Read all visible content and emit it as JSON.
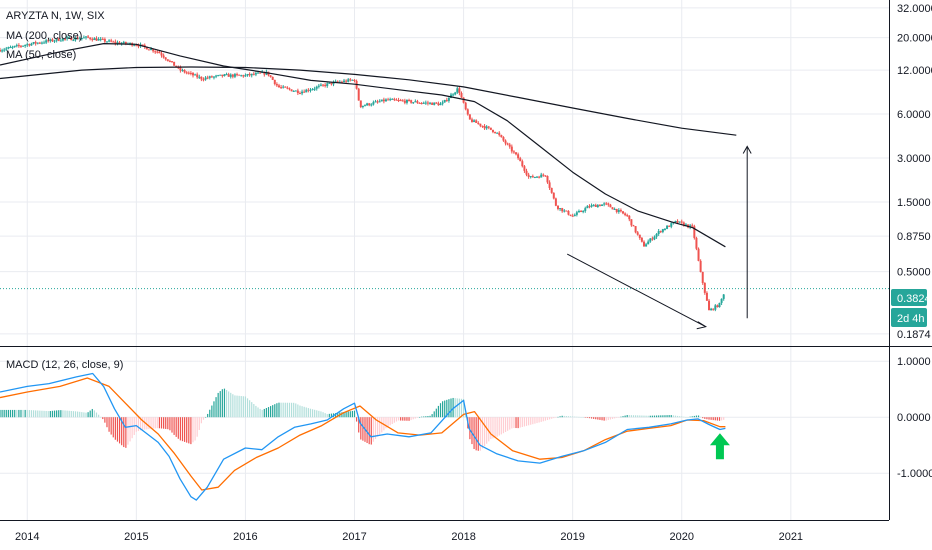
{
  "header": {
    "symbol": "ARYZTA N, 1W, SIX",
    "ma200_label": "MA (200, close)",
    "ma50_label": "MA (50, close)",
    "macd_label": "MACD (12, 26, close, 9)"
  },
  "price_badge": {
    "value": "0.3824",
    "countdown": "2d 4h"
  },
  "colors": {
    "up": "#26a69a",
    "down": "#ef5350",
    "ma": "#131722",
    "macd": "#2196f3",
    "signal": "#ff6d00",
    "arrow": "#00c853",
    "grid": "#e9ebf0",
    "dotted": "#26a69a"
  },
  "chart_data": [
    {
      "type": "line",
      "subtype": "candlestick",
      "title": "ARYZTA N, 1W, SIX",
      "y_scale": "log",
      "y_ticks": [
        "32.0000",
        "20.0000",
        "12.0000",
        "6.0000",
        "3.0000",
        "1.5000",
        "0.8750",
        "0.5000",
        "0.1874"
      ],
      "x_ticks": [
        "2014",
        "2015",
        "2016",
        "2017",
        "2018",
        "2019",
        "2020",
        "2021"
      ],
      "x_unit": "year",
      "ylim": [
        0.165,
        34
      ],
      "xlim": [
        2013.75,
        2021.9
      ],
      "last_price": 0.3824,
      "price_key_points": [
        [
          2013.75,
          16.5
        ],
        [
          2014.0,
          18.0
        ],
        [
          2014.3,
          19.5
        ],
        [
          2014.55,
          20.0
        ],
        [
          2014.8,
          18.5
        ],
        [
          2015.0,
          18.0
        ],
        [
          2015.2,
          16.0
        ],
        [
          2015.4,
          12.0
        ],
        [
          2015.6,
          10.5
        ],
        [
          2015.8,
          11.0
        ],
        [
          2016.0,
          11.0
        ],
        [
          2016.2,
          11.5
        ],
        [
          2016.3,
          9.2
        ],
        [
          2016.5,
          8.5
        ],
        [
          2016.8,
          9.8
        ],
        [
          2017.0,
          10.3
        ],
        [
          2017.05,
          6.8
        ],
        [
          2017.3,
          7.5
        ],
        [
          2017.6,
          7.2
        ],
        [
          2017.8,
          7.0
        ],
        [
          2017.95,
          9.0
        ],
        [
          2018.05,
          5.5
        ],
        [
          2018.3,
          4.5
        ],
        [
          2018.5,
          3.0
        ],
        [
          2018.6,
          2.2
        ],
        [
          2018.75,
          2.3
        ],
        [
          2018.85,
          1.4
        ],
        [
          2019.0,
          1.2
        ],
        [
          2019.15,
          1.4
        ],
        [
          2019.3,
          1.45
        ],
        [
          2019.5,
          1.2
        ],
        [
          2019.65,
          0.75
        ],
        [
          2019.8,
          0.95
        ],
        [
          2019.95,
          1.1
        ],
        [
          2020.1,
          1.0
        ],
        [
          2020.17,
          0.5
        ],
        [
          2020.25,
          0.27
        ],
        [
          2020.35,
          0.3
        ],
        [
          2020.4,
          0.3824
        ]
      ],
      "series": [
        {
          "name": "MA (200, close)",
          "x": [
            2013.75,
            2014.5,
            2015.0,
            2015.5,
            2016.0,
            2016.5,
            2017.0,
            2017.5,
            2018.0,
            2018.5,
            2019.0,
            2019.5,
            2020.0,
            2020.5
          ],
          "y": [
            10.5,
            12.0,
            12.5,
            12.6,
            12.5,
            12.0,
            11.2,
            10.3,
            9.2,
            7.8,
            6.6,
            5.6,
            4.8,
            4.3
          ]
        },
        {
          "name": "MA (50, close)",
          "x": [
            2013.75,
            2014.3,
            2014.7,
            2015.0,
            2015.4,
            2015.8,
            2016.2,
            2016.6,
            2017.0,
            2017.4,
            2017.8,
            2018.1,
            2018.4,
            2018.7,
            2019.0,
            2019.3,
            2019.6,
            2019.9,
            2020.1,
            2020.4
          ],
          "y": [
            13.0,
            16.0,
            18.2,
            18.0,
            15.0,
            12.8,
            11.5,
            10.2,
            9.6,
            8.8,
            8.1,
            7.3,
            5.4,
            3.6,
            2.4,
            1.7,
            1.3,
            1.1,
            1.0,
            0.74
          ]
        }
      ],
      "annotations": [
        {
          "type": "trend_line",
          "x": [
            2018.95,
            2020.22
          ],
          "y": [
            0.66,
            0.21
          ]
        },
        {
          "type": "arrow_up",
          "x": [
            2020.6,
            2020.6
          ],
          "y": [
            0.24,
            3.6
          ]
        }
      ]
    },
    {
      "type": "line",
      "title": "MACD (12, 26, close, 9)",
      "y_ticks": [
        "1.0000",
        "0.0000",
        "-1.0000"
      ],
      "ylim": [
        -1.8,
        1.2
      ],
      "series": [
        {
          "name": "MACD",
          "x": [
            2013.75,
            2014.0,
            2014.2,
            2014.45,
            2014.6,
            2014.7,
            2014.8,
            2014.9,
            2015.0,
            2015.1,
            2015.2,
            2015.3,
            2015.4,
            2015.5,
            2015.55,
            2015.65,
            2015.8,
            2016.0,
            2016.15,
            2016.3,
            2016.45,
            2016.6,
            2016.75,
            2016.9,
            2017.0,
            2017.05,
            2017.15,
            2017.3,
            2017.5,
            2017.7,
            2017.9,
            2018.0,
            2018.05,
            2018.15,
            2018.3,
            2018.5,
            2018.7,
            2018.9,
            2019.1,
            2019.3,
            2019.5,
            2019.7,
            2019.9,
            2020.05,
            2020.15,
            2020.25,
            2020.35,
            2020.4
          ],
          "y": [
            0.45,
            0.55,
            0.6,
            0.72,
            0.78,
            0.55,
            0.15,
            -0.18,
            -0.15,
            -0.3,
            -0.45,
            -0.7,
            -1.1,
            -1.42,
            -1.48,
            -1.25,
            -0.75,
            -0.55,
            -0.58,
            -0.35,
            -0.18,
            -0.12,
            -0.05,
            0.15,
            0.25,
            -0.1,
            -0.35,
            -0.3,
            -0.35,
            -0.28,
            0.15,
            0.3,
            -0.2,
            -0.5,
            -0.65,
            -0.78,
            -0.82,
            -0.7,
            -0.6,
            -0.45,
            -0.22,
            -0.18,
            -0.12,
            -0.05,
            -0.03,
            -0.13,
            -0.22,
            -0.2
          ]
        },
        {
          "name": "Signal",
          "x": [
            2013.75,
            2014.0,
            2014.3,
            2014.55,
            2014.75,
            2014.9,
            2015.05,
            2015.2,
            2015.35,
            2015.5,
            2015.6,
            2015.75,
            2015.9,
            2016.1,
            2016.3,
            2016.5,
            2016.7,
            2016.9,
            2017.05,
            2017.2,
            2017.4,
            2017.6,
            2017.8,
            2018.0,
            2018.1,
            2018.25,
            2018.45,
            2018.7,
            2018.9,
            2019.1,
            2019.3,
            2019.5,
            2019.7,
            2019.9,
            2020.05,
            2020.2,
            2020.35,
            2020.4
          ],
          "y": [
            0.35,
            0.45,
            0.55,
            0.7,
            0.55,
            0.25,
            -0.05,
            -0.3,
            -0.65,
            -1.05,
            -1.3,
            -1.25,
            -0.95,
            -0.72,
            -0.55,
            -0.32,
            -0.15,
            0.08,
            0.2,
            -0.05,
            -0.28,
            -0.32,
            -0.28,
            0.05,
            0.1,
            -0.3,
            -0.6,
            -0.75,
            -0.72,
            -0.6,
            -0.4,
            -0.25,
            -0.2,
            -0.15,
            -0.05,
            -0.06,
            -0.17,
            -0.17
          ]
        }
      ],
      "annotations": [
        {
          "type": "arrow_up",
          "color": "#00c853",
          "x": 2020.35,
          "y": -0.75
        }
      ]
    }
  ]
}
